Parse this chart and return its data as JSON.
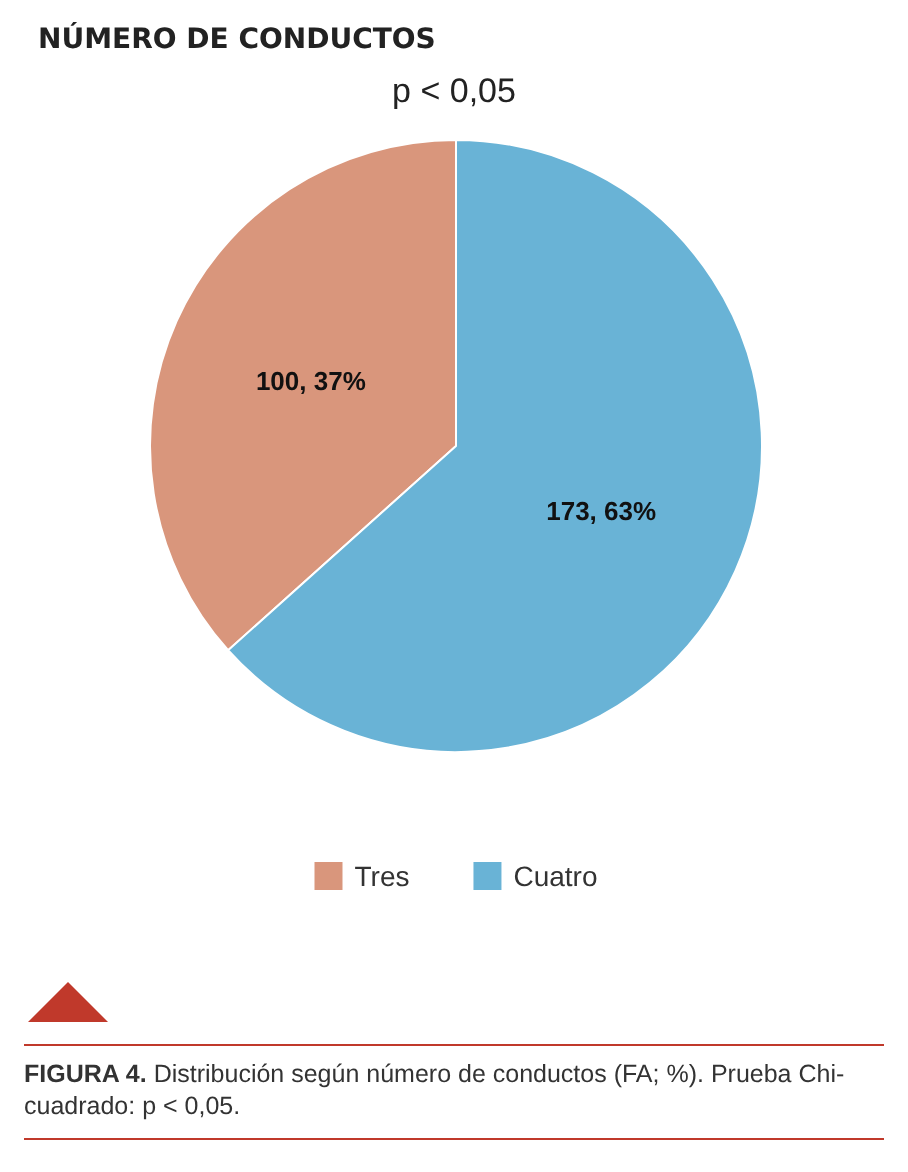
{
  "chart_data": {
    "type": "pie",
    "title": "NÚMERO DE CONDUCTOS",
    "subtitle": "p < 0,05",
    "categories": [
      "Tres",
      "Cuatro"
    ],
    "values": [
      100,
      173
    ],
    "colors": [
      "#d9967c",
      "#69b3d6"
    ],
    "value_labels": [
      "100, 37%",
      "173, 63%"
    ],
    "legend": "bottom",
    "annotations": [
      "FIGURA 4. Distribución según número de conductos (FA; %). Prueba Chi-cuadrado: p < 0,05."
    ]
  }
}
